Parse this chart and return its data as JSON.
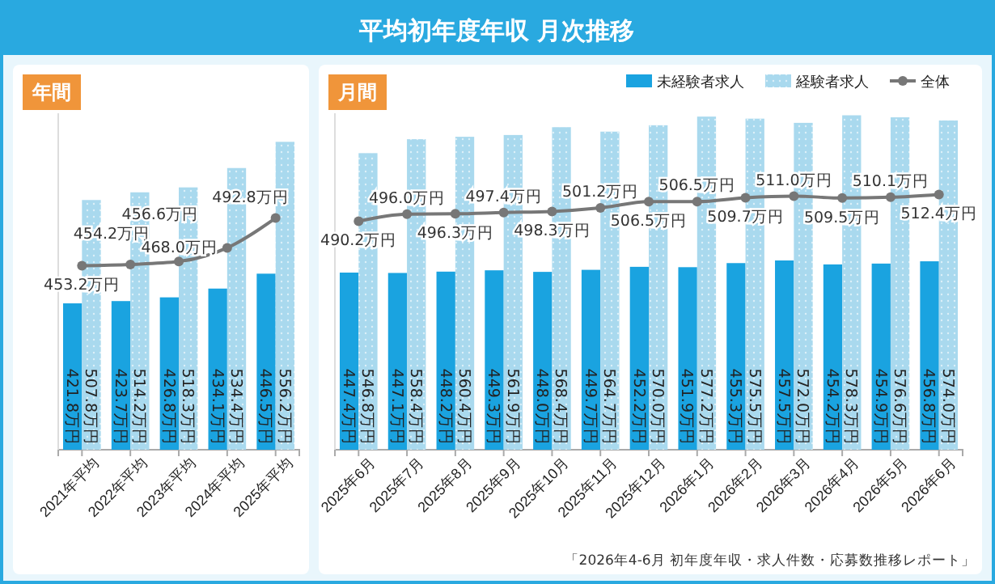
{
  "chart_data": [
    {
      "type": "bar",
      "title": "年間",
      "annotations": [
        "平均初年度年収 月次推移"
      ],
      "categories": [
        "2021年平均",
        "2022年平均",
        "2023年平均",
        "2024年平均",
        "2025年平均"
      ],
      "series": [
        {
          "color": "#1aa3e0",
          "values": [
            421.8,
            423.7,
            426.8,
            434.1,
            446.5
          ],
          "value_labels": [
            "421.8万円",
            "423.7万円",
            "426.8万円",
            "434.1万円",
            "446.5万円"
          ]
        },
        {
          "color": "#a9d9ee",
          "values": [
            507.8,
            514.2,
            518.3,
            534.4,
            556.2
          ],
          "value_labels": [
            "507.8万円",
            "514.2万円",
            "518.3万円",
            "534.4万円",
            "556.2万円"
          ]
        },
        {
          "type": "line",
          "color": "#777777",
          "values": [
            453.2,
            454.2,
            456.6,
            468.0,
            492.8
          ],
          "value_labels": [
            "453.2万円",
            "454.2万円",
            "456.6万円",
            "468.0万円",
            "492.8万円"
          ]
        }
      ],
      "ylim": [
        300,
        580
      ],
      "tick_labels": "x",
      "marker": "circle",
      "legend": false
    },
    {
      "type": "bar",
      "title": "月間",
      "annotations": [
        "「2026年4-6月 初年度年収・求人件数・応募数推移レポート」"
      ],
      "categories": [
        "2025年6月",
        "2025年7月",
        "2025年8月",
        "2025年9月",
        "2025年10月",
        "2025年11月",
        "2025年12月",
        "2026年1月",
        "2026年2月",
        "2026年3月",
        "2026年4月",
        "2026年5月",
        "2026年6月"
      ],
      "series": [
        {
          "name": "未経験者求人",
          "color": "#1aa3e0",
          "values": [
            447.4,
            447.1,
            448.2,
            449.3,
            448.0,
            449.7,
            452.2,
            451.9,
            455.3,
            457.5,
            454.2,
            454.9,
            456.8
          ],
          "value_labels": [
            "447.4万円",
            "447.1万円",
            "448.2万円",
            "449.3万円",
            "448.0万円",
            "449.7万円",
            "452.2万円",
            "451.9万円",
            "455.3万円",
            "457.5万円",
            "454.2万円",
            "454.9万円",
            "456.8万円"
          ]
        },
        {
          "name": "経験者求人",
          "color": "#a9d9ee",
          "values": [
            546.8,
            558.4,
            560.4,
            561.9,
            568.4,
            564.7,
            570.0,
            577.2,
            575.5,
            572.0,
            578.3,
            576.6,
            574.0
          ],
          "value_labels": [
            "546.8万円",
            "558.4万円",
            "560.4万円",
            "561.9万円",
            "568.4万円",
            "564.7万円",
            "570.0万円",
            "577.2万円",
            "575.5万円",
            "572.0万円",
            "578.3万円",
            "576.6万円",
            "574.0万円"
          ]
        },
        {
          "name": "全体",
          "type": "line",
          "color": "#777777",
          "values": [
            490.2,
            496.0,
            496.3,
            497.4,
            498.3,
            501.2,
            506.5,
            506.5,
            509.7,
            511.0,
            509.5,
            510.1,
            512.4
          ],
          "value_labels": [
            "490.2万円",
            "496.0万円",
            "496.3万円",
            "497.4万円",
            "498.3万円",
            "501.2万円",
            "506.5万円",
            "506.5万円",
            "509.7万円",
            "511.0万円",
            "509.5万円",
            "510.1万円",
            "512.4万円"
          ]
        }
      ],
      "ylim": [
        300,
        580
      ],
      "tick_labels": "x",
      "marker": "circle",
      "legend": "top right"
    }
  ]
}
